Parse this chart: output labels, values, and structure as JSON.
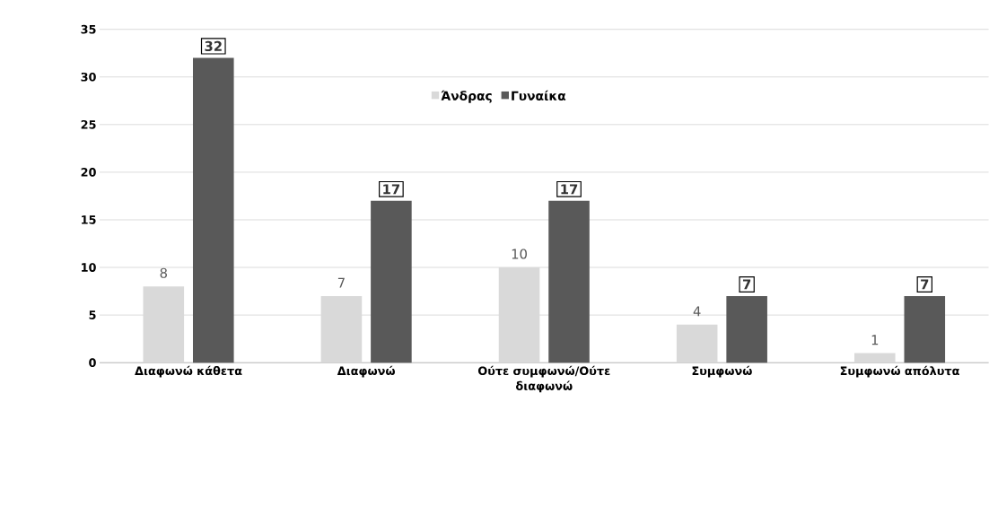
{
  "chart_data": {
    "type": "bar",
    "categories": [
      "Διαφωνώ κάθετα",
      "Διαφωνώ",
      "Ούτε συμφωνώ/Ούτε διαφωνώ",
      "Συμφωνώ",
      "Συμφωνώ απόλυτα"
    ],
    "series": [
      {
        "name": "Άνδρας",
        "color": "#d9d9d9",
        "values": [
          8,
          7,
          10,
          4,
          1
        ]
      },
      {
        "name": "Γυναίκα",
        "color": "#595959",
        "values": [
          32,
          17,
          17,
          7,
          7
        ]
      }
    ],
    "ylim": [
      0,
      35
    ],
    "yticks": [
      0,
      5,
      10,
      15,
      20,
      25,
      30,
      35
    ],
    "grid": "y",
    "legend": "top",
    "data_labels": true
  }
}
